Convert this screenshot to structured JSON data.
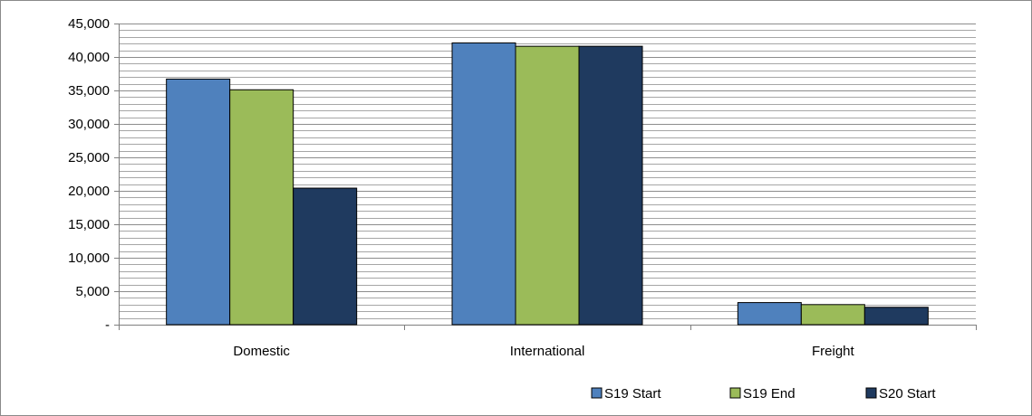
{
  "chart_data": {
    "type": "bar",
    "title": "",
    "xlabel": "",
    "ylabel": "",
    "categories": [
      "Domestic",
      "International",
      "Freight"
    ],
    "series": [
      {
        "name": "S19 Start",
        "color": "#4f81bd",
        "values": [
          36700,
          42100,
          3300
        ]
      },
      {
        "name": "S19 End",
        "color": "#9bbb59",
        "values": [
          35100,
          41600,
          3000
        ]
      },
      {
        "name": "S20 Start",
        "color": "#1f3a5f",
        "values": [
          20400,
          41600,
          2600
        ]
      }
    ],
    "ylim": [
      0,
      45000
    ],
    "y_ticks": [
      0,
      5000,
      10000,
      15000,
      20000,
      25000,
      30000,
      35000,
      40000,
      45000
    ],
    "y_tick_labels": [
      "-",
      "5,000",
      "10,000",
      "15,000",
      "20,000",
      "25,000",
      "30,000",
      "35,000",
      "40,000",
      "45,000"
    ],
    "grid": true,
    "legend_position": "bottom-right",
    "colors": {
      "gridline": "#a6a6a6",
      "plot_background": "#ffffff",
      "frame": "#8a8a8a"
    }
  }
}
